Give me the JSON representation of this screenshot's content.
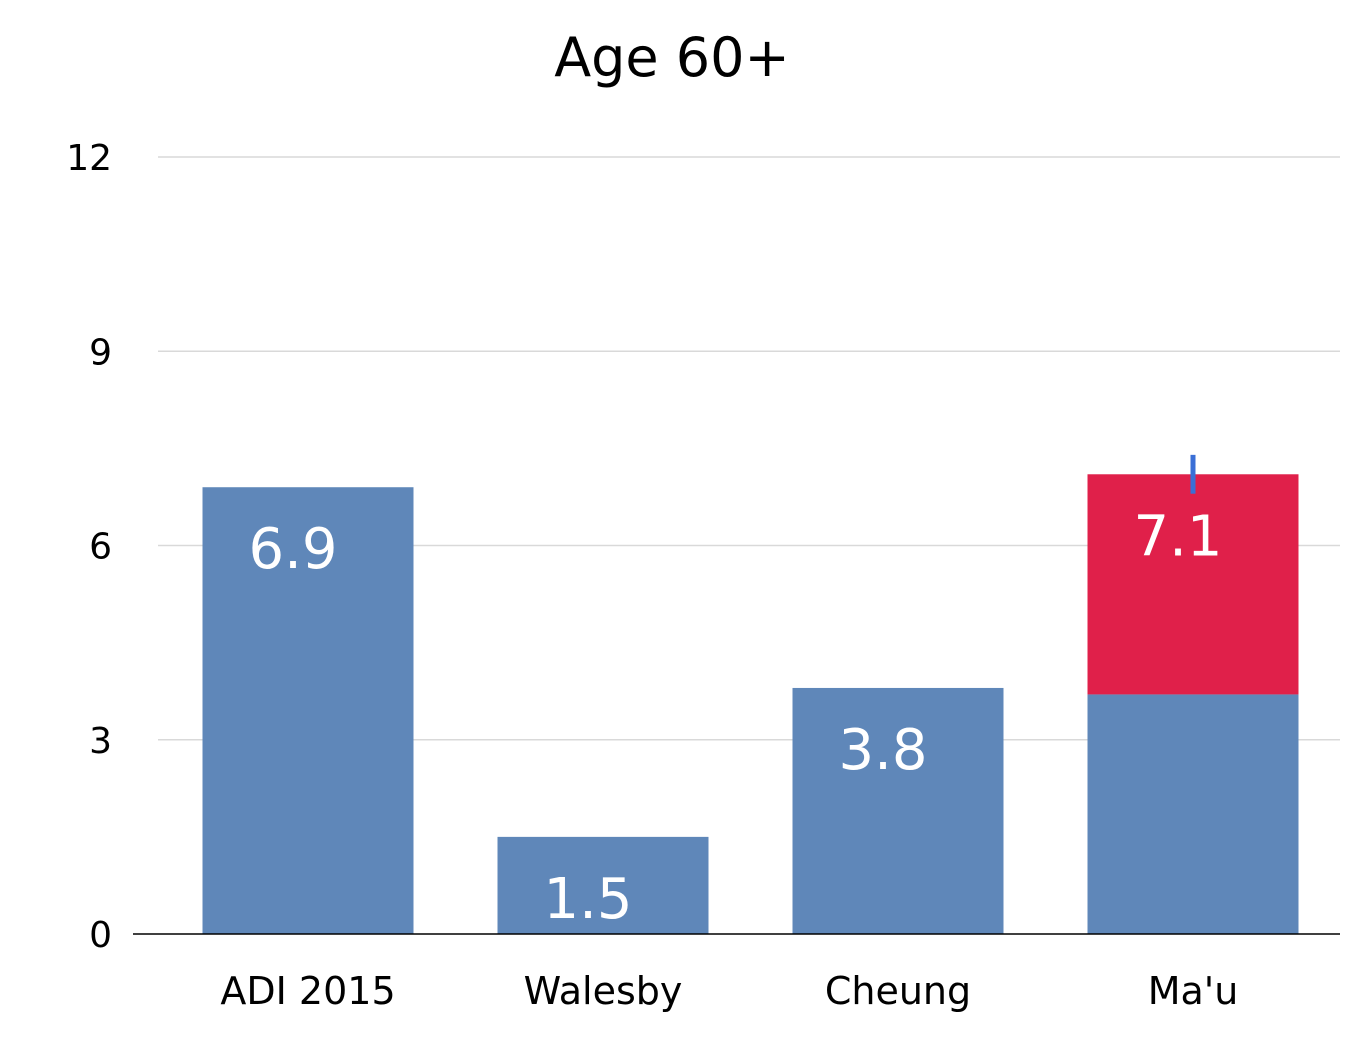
{
  "chart_data": {
    "type": "bar",
    "title": "Age 60+",
    "xlabel": "",
    "ylabel": "",
    "categories": [
      "ADI 2015",
      "Walesby",
      "Cheung",
      "Ma'u"
    ],
    "series": [
      {
        "color": "#5f87b9",
        "values": [
          6.9,
          1.5,
          3.8,
          3.7
        ]
      },
      {
        "color": "#e0204a",
        "values": [
          0,
          0,
          0,
          3.4
        ]
      }
    ],
    "data_labels": [
      "6.9",
      "1.5",
      "3.8",
      "7.1"
    ],
    "yticks": [
      "0",
      "3",
      "6",
      "9",
      "12"
    ],
    "ylim": [
      0,
      12
    ],
    "grid": true,
    "legend": "none",
    "error_bar": {
      "category": "Ma'u",
      "low": 6.8,
      "high": 7.4,
      "color": "#3a6fd6"
    }
  }
}
